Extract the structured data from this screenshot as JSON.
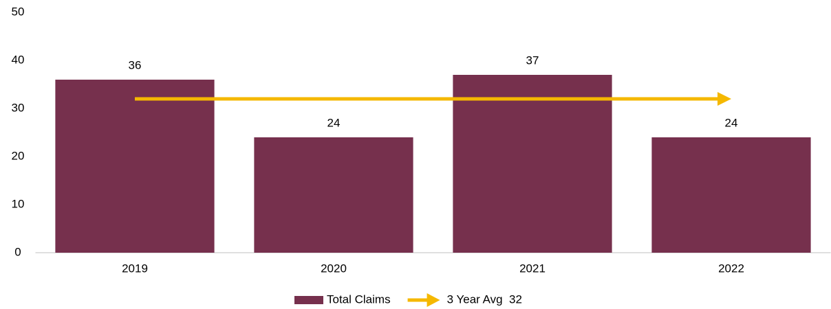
{
  "chart_data": {
    "type": "bar",
    "categories": [
      "2019",
      "2020",
      "2021",
      "2022"
    ],
    "series": [
      {
        "name": "Total Claims",
        "type": "bar",
        "color": "#76304d",
        "values": [
          36,
          24,
          37,
          24
        ]
      },
      {
        "name": "3 Year Avg  32",
        "type": "arrow-line",
        "color": "#f5b800",
        "values": [
          32,
          32,
          32,
          32
        ]
      }
    ],
    "ylim": [
      0,
      50
    ],
    "yticks": [
      0,
      10,
      20,
      30,
      40,
      50
    ],
    "grid": false,
    "legend": "bottom"
  }
}
